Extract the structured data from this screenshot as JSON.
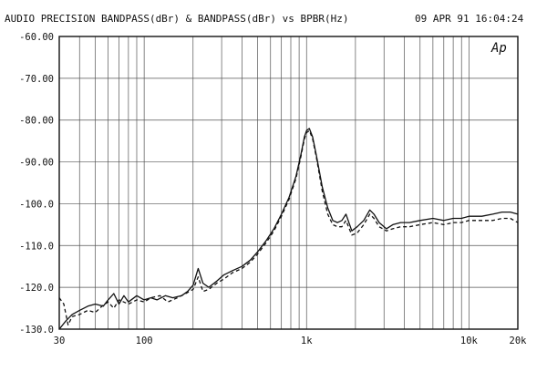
{
  "header": {
    "title": "AUDIO PRECISION BANDPASS(dBr) & BANDPASS(dBr) vs BPBR(Hz)",
    "timestamp": "09 APR 91 16:04:24"
  },
  "logo_text": "Ap",
  "chart_data": {
    "type": "line",
    "title": "AUDIO PRECISION BANDPASS(dBr) & BANDPASS(dBr) vs BPBR(Hz)",
    "xlabel": "BPBR(Hz)",
    "ylabel": "BANDPASS(dBr)",
    "x_scale": "log",
    "xlim": [
      30,
      20000
    ],
    "ylim": [
      -130,
      -60
    ],
    "grid": true,
    "y_ticks": [
      -60,
      -70,
      -80,
      -90,
      -100,
      -110,
      -120,
      -130
    ],
    "y_tick_labels": [
      "-60.00",
      "-70.00",
      "-80.00",
      "-90.00",
      "-100.0",
      "-110.0",
      "-120.0",
      "-130.0"
    ],
    "x_ticks": [
      30,
      100,
      1000,
      10000,
      20000
    ],
    "x_tick_labels": [
      "30",
      "100",
      "1k",
      "10k",
      "20k"
    ],
    "series": [
      {
        "style": "solid",
        "color": "#111111",
        "points": [
          [
            30,
            -130
          ],
          [
            33,
            -128
          ],
          [
            36,
            -126.5
          ],
          [
            40,
            -125.5
          ],
          [
            45,
            -124.5
          ],
          [
            50,
            -124
          ],
          [
            56,
            -124.5
          ],
          [
            60,
            -123
          ],
          [
            65,
            -121.5
          ],
          [
            70,
            -124
          ],
          [
            75,
            -122
          ],
          [
            80,
            -123.5
          ],
          [
            90,
            -122
          ],
          [
            100,
            -123
          ],
          [
            110,
            -122.5
          ],
          [
            120,
            -123
          ],
          [
            135,
            -122
          ],
          [
            150,
            -122.5
          ],
          [
            170,
            -122
          ],
          [
            185,
            -121
          ],
          [
            200,
            -119.5
          ],
          [
            215,
            -115.5
          ],
          [
            230,
            -119
          ],
          [
            250,
            -120
          ],
          [
            280,
            -118.5
          ],
          [
            310,
            -117
          ],
          [
            350,
            -116
          ],
          [
            400,
            -115
          ],
          [
            450,
            -113.5
          ],
          [
            500,
            -111.5
          ],
          [
            560,
            -109
          ],
          [
            630,
            -106
          ],
          [
            700,
            -102.5
          ],
          [
            780,
            -98.5
          ],
          [
            860,
            -93.5
          ],
          [
            920,
            -88.5
          ],
          [
            970,
            -84
          ],
          [
            1000,
            -82.5
          ],
          [
            1040,
            -82
          ],
          [
            1090,
            -84
          ],
          [
            1150,
            -88.5
          ],
          [
            1250,
            -96
          ],
          [
            1350,
            -101
          ],
          [
            1450,
            -104
          ],
          [
            1550,
            -104.5
          ],
          [
            1650,
            -104
          ],
          [
            1750,
            -102.5
          ],
          [
            1900,
            -106.5
          ],
          [
            2050,
            -105.5
          ],
          [
            2250,
            -104
          ],
          [
            2450,
            -101.5
          ],
          [
            2600,
            -102.5
          ],
          [
            2800,
            -104.5
          ],
          [
            3100,
            -106
          ],
          [
            3400,
            -105
          ],
          [
            3800,
            -104.5
          ],
          [
            4300,
            -104.5
          ],
          [
            5000,
            -104
          ],
          [
            6000,
            -103.5
          ],
          [
            7000,
            -104
          ],
          [
            8000,
            -103.5
          ],
          [
            9000,
            -103.5
          ],
          [
            10000,
            -103
          ],
          [
            12000,
            -103
          ],
          [
            14000,
            -102.5
          ],
          [
            16000,
            -102
          ],
          [
            18000,
            -102
          ],
          [
            20000,
            -102.5
          ]
        ]
      },
      {
        "style": "dashed",
        "color": "#111111",
        "points": [
          [
            30,
            -122.5
          ],
          [
            32,
            -124
          ],
          [
            34,
            -129
          ],
          [
            36,
            -127
          ],
          [
            40,
            -126.5
          ],
          [
            45,
            -125.5
          ],
          [
            50,
            -126
          ],
          [
            55,
            -124.5
          ],
          [
            60,
            -123.5
          ],
          [
            65,
            -125
          ],
          [
            70,
            -123
          ],
          [
            80,
            -124
          ],
          [
            90,
            -123
          ],
          [
            100,
            -123.5
          ],
          [
            110,
            -122.5
          ],
          [
            125,
            -122
          ],
          [
            140,
            -123.5
          ],
          [
            160,
            -122.5
          ],
          [
            180,
            -121.5
          ],
          [
            200,
            -120.5
          ],
          [
            215,
            -117.5
          ],
          [
            230,
            -121
          ],
          [
            250,
            -120.5
          ],
          [
            280,
            -119
          ],
          [
            310,
            -118
          ],
          [
            350,
            -116.5
          ],
          [
            400,
            -115.5
          ],
          [
            450,
            -114
          ],
          [
            500,
            -112
          ],
          [
            560,
            -109.5
          ],
          [
            630,
            -106.5
          ],
          [
            700,
            -103
          ],
          [
            780,
            -99
          ],
          [
            860,
            -94
          ],
          [
            920,
            -89
          ],
          [
            970,
            -84.5
          ],
          [
            1000,
            -83
          ],
          [
            1040,
            -82.5
          ],
          [
            1090,
            -84.5
          ],
          [
            1150,
            -89
          ],
          [
            1250,
            -97
          ],
          [
            1350,
            -102.5
          ],
          [
            1450,
            -105
          ],
          [
            1550,
            -105.5
          ],
          [
            1650,
            -105.5
          ],
          [
            1750,
            -104
          ],
          [
            1900,
            -107.5
          ],
          [
            2050,
            -107
          ],
          [
            2250,
            -105
          ],
          [
            2450,
            -102.5
          ],
          [
            2600,
            -103.5
          ],
          [
            2800,
            -105.5
          ],
          [
            3100,
            -106.5
          ],
          [
            3400,
            -106
          ],
          [
            3800,
            -105.5
          ],
          [
            4300,
            -105.5
          ],
          [
            5000,
            -105
          ],
          [
            6000,
            -104.5
          ],
          [
            7000,
            -105
          ],
          [
            8000,
            -104.5
          ],
          [
            9000,
            -104.5
          ],
          [
            10000,
            -104
          ],
          [
            12000,
            -104
          ],
          [
            14000,
            -104
          ],
          [
            16000,
            -103.5
          ],
          [
            18000,
            -103.5
          ],
          [
            20000,
            -104.5
          ]
        ]
      }
    ]
  }
}
